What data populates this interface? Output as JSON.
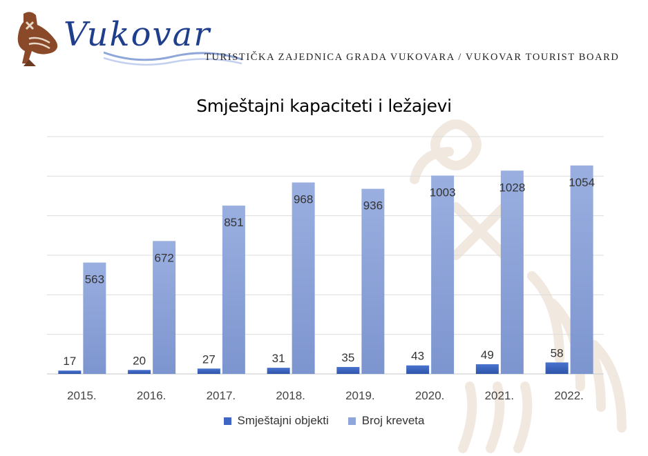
{
  "header": {
    "brand_name": "Vukovar",
    "tagline": "TURISTIČKA ZAJEDNICA GRADA VUKOVARA / VUKOVAR TOURIST BOARD"
  },
  "colors": {
    "series_dark": "#3f66c2",
    "series_light": "#8fa6da",
    "brand_blue": "#1f3f8c",
    "watermark": "#efe6dc"
  },
  "icons": {
    "logo": "vucedol-dove-icon"
  },
  "chart_data": {
    "type": "bar",
    "title": "Smještajni kapaciteti i ležajevi",
    "categories": [
      "2015.",
      "2016.",
      "2017.",
      "2018.",
      "2019.",
      "2020.",
      "2021.",
      "2022."
    ],
    "series": [
      {
        "name": "Smještajni objekti",
        "values": [
          17,
          20,
          27,
          31,
          35,
          43,
          49,
          58
        ]
      },
      {
        "name": "Broj kreveta",
        "values": [
          563,
          672,
          851,
          968,
          936,
          1003,
          1028,
          1054
        ]
      }
    ],
    "xlabel": "",
    "ylabel": "",
    "ylim": [
      0,
      1200
    ],
    "gridlines": true,
    "y_tick_labels_shown": false,
    "data_labels": true,
    "legend_position": "bottom"
  }
}
